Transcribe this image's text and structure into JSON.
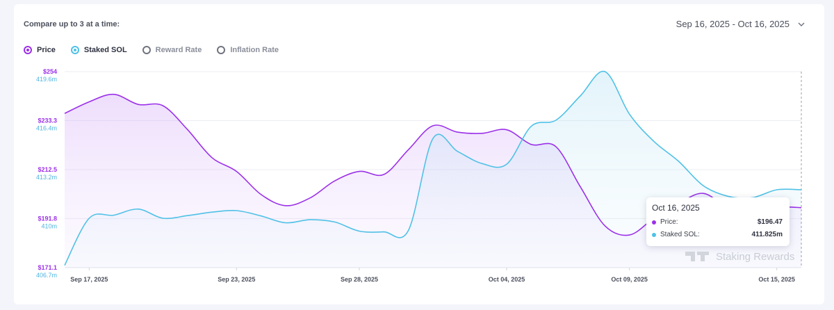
{
  "header": {
    "compare_label": "Compare up to 3 at a time:",
    "date_range": "Sep 16, 2025 - Oct 16, 2025"
  },
  "metrics": [
    {
      "label": "Price",
      "selected": true,
      "color": "#9b30e8"
    },
    {
      "label": "Staked SOL",
      "selected": true,
      "color": "#4fc1e6"
    },
    {
      "label": "Reward Rate",
      "selected": false,
      "color": "#6f737e"
    },
    {
      "label": "Inflation Rate",
      "selected": false,
      "color": "#6f737e"
    }
  ],
  "tooltip": {
    "date": "Oct 16, 2025",
    "rows": [
      {
        "label": "Price:",
        "value": "$196.47",
        "color": "#9b30e8"
      },
      {
        "label": "Staked SOL:",
        "value": "411.825m",
        "color": "#4fc1e6"
      }
    ]
  },
  "watermark": "Staking Rewards",
  "chart_data": {
    "type": "line",
    "x": [
      "Sep 16",
      "Sep 17",
      "Sep 18",
      "Sep 19",
      "Sep 20",
      "Sep 21",
      "Sep 22",
      "Sep 23",
      "Sep 24",
      "Sep 25",
      "Sep 26",
      "Sep 27",
      "Sep 28",
      "Sep 29",
      "Sep 30",
      "Oct 01",
      "Oct 02",
      "Oct 03",
      "Oct 04",
      "Oct 05",
      "Oct 06",
      "Oct 07",
      "Oct 08",
      "Oct 09",
      "Oct 10",
      "Oct 11",
      "Oct 12",
      "Oct 13",
      "Oct 14",
      "Oct 15",
      "Oct 16"
    ],
    "x_ticks": [
      "Sep 17, 2025",
      "Sep 23, 2025",
      "Sep 28, 2025",
      "Oct 04, 2025",
      "Oct 09, 2025",
      "Oct 15, 2025"
    ],
    "series": [
      {
        "name": "Price",
        "color": "#9b30e8",
        "axis": "left",
        "values": [
          236.3,
          241.2,
          244.4,
          240.1,
          239.6,
          229.5,
          217.6,
          211.8,
          202.0,
          197.3,
          200.6,
          207.8,
          211.8,
          210.5,
          221.0,
          231.1,
          228.4,
          227.9,
          229.4,
          223.2,
          222.3,
          205.3,
          188.8,
          184.9,
          192.0,
          198.2,
          202.5,
          196.4,
          193.1,
          196.5,
          196.47
        ]
      },
      {
        "name": "Staked SOL",
        "color": "#4fc1e6",
        "axis": "right",
        "values": [
          406.85,
          409.95,
          410.15,
          410.55,
          409.95,
          410.12,
          410.35,
          410.45,
          410.1,
          409.65,
          409.85,
          409.7,
          409.1,
          409.05,
          409.15,
          415.2,
          414.35,
          413.55,
          413.5,
          416.0,
          416.4,
          418.0,
          419.6,
          416.8,
          415.0,
          413.7,
          412.1,
          411.4,
          411.3,
          411.825,
          411.825
        ]
      }
    ],
    "left_axis": {
      "ticks": [
        "$254",
        "$233.3",
        "$212.5",
        "$191.8",
        "$171.1"
      ],
      "ylim": [
        171.1,
        254
      ]
    },
    "right_axis": {
      "ticks": [
        "419.6m",
        "416.4m",
        "413.2m",
        "410m",
        "406.7m"
      ],
      "ylim": [
        406.7,
        419.6
      ]
    },
    "grid": true,
    "title": "",
    "xlabel": "",
    "ylabel": ""
  }
}
